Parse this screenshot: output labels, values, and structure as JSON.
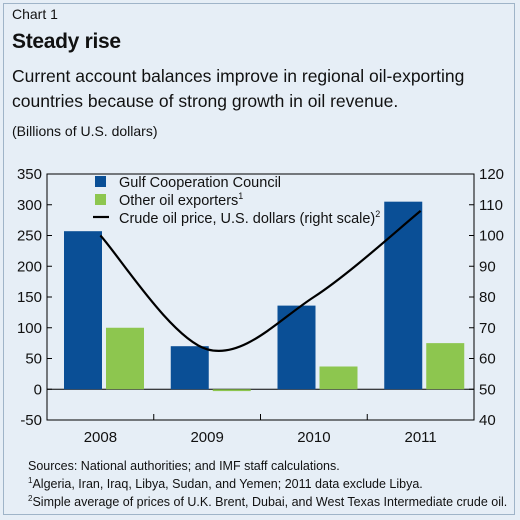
{
  "header": {
    "chart_label": "Chart 1",
    "title": "Steady rise",
    "subtitle": "Current account balances improve in regional oil-exporting countries because of strong growth in oil revenue.",
    "units": "(Billions of U.S. dollars)"
  },
  "footer": {
    "source": "Sources: National authorities; and IMF staff calculations.",
    "note1_marker": "1",
    "note1": "Algeria, Iran, Iraq, Libya, Sudan, and Yemen; 2011 data exclude Libya.",
    "note2_marker": "2",
    "note2": "Simple average of prices of U.K. Brent, Dubai, and West Texas Intermediate crude oil."
  },
  "colors": {
    "gcc": "#0a4f96",
    "other": "#8dc64f",
    "line": "#000000",
    "background": "#e6eef6"
  },
  "chart_data": {
    "type": "bar",
    "categories": [
      "2008",
      "2009",
      "2010",
      "2011"
    ],
    "series": [
      {
        "name": "Gulf Cooperation Council",
        "type": "bar",
        "axis": "left",
        "values": [
          257,
          70,
          136,
          305
        ]
      },
      {
        "name": "Other oil exporters",
        "superscript": "1",
        "type": "bar",
        "axis": "left",
        "values": [
          100,
          -3,
          37,
          75
        ]
      },
      {
        "name": "Crude oil price, U.S. dollars (right scale)",
        "superscript": "2",
        "type": "line",
        "axis": "right",
        "values": [
          100,
          63,
          80,
          108
        ]
      }
    ],
    "y_left": {
      "min": -50,
      "max": 350,
      "ticks": [
        -50,
        0,
        50,
        100,
        150,
        200,
        250,
        300,
        350
      ]
    },
    "y_right": {
      "min": 40,
      "max": 120,
      "ticks": [
        40,
        50,
        60,
        70,
        80,
        90,
        100,
        110,
        120
      ]
    },
    "legend_position": "top-center",
    "grid": false
  }
}
